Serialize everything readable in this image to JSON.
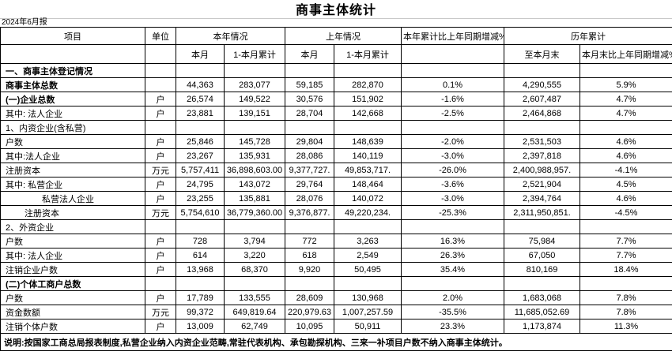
{
  "page": {
    "title": "商事主体统计",
    "report_period": "2024年6月报"
  },
  "table": {
    "header": {
      "item": "项目",
      "unit": "单位",
      "this_year": "本年情况",
      "last_year": "上年情况",
      "ytd_vs_last_year": "本年累计比上年同期增减%",
      "historical": "历年累计",
      "this_month": "本月",
      "month_cumulative": "1-本月累计",
      "to_month_end": "至本月末",
      "month_end_vs_last_year": "本月末比上年同期增减%"
    },
    "rows": [
      {
        "label": "一、商事主体登记情况",
        "unit": "",
        "bold": true,
        "indent": 0,
        "values": [
          "",
          "",
          "",
          "",
          "",
          "",
          ""
        ]
      },
      {
        "label": "商事主体总数",
        "unit": "",
        "bold": true,
        "indent": 0,
        "values": [
          "44,363",
          "283,077",
          "59,185",
          "282,870",
          "0.1%",
          "4,290,555",
          "5.9%"
        ]
      },
      {
        "label": "(一)企业总数",
        "unit": "户",
        "bold": true,
        "indent": 0,
        "values": [
          "26,574",
          "149,522",
          "30,576",
          "151,902",
          "-1.6%",
          "2,607,487",
          "4.7%"
        ]
      },
      {
        "label": "其中: 法人企业",
        "unit": "户",
        "bold": false,
        "indent": 0,
        "values": [
          "23,881",
          "139,151",
          "28,704",
          "142,668",
          "-2.5%",
          "2,464,868",
          "4.7%"
        ]
      },
      {
        "label": "1、内资企业(含私营)",
        "unit": "",
        "bold": false,
        "indent": 0,
        "values": [
          "",
          "",
          "",
          "",
          "",
          "",
          ""
        ]
      },
      {
        "label": "户数",
        "unit": "户",
        "bold": false,
        "indent": 0,
        "values": [
          "25,846",
          "145,728",
          "29,804",
          "148,639",
          "-2.0%",
          "2,531,503",
          "4.6%"
        ]
      },
      {
        "label": "其中:法人企业",
        "unit": "户",
        "bold": false,
        "indent": 0,
        "values": [
          "23,267",
          "135,931",
          "28,086",
          "140,119",
          "-3.0%",
          "2,397,818",
          "4.6%"
        ]
      },
      {
        "label": "注册资本",
        "unit": "万元",
        "bold": false,
        "indent": 0,
        "values": [
          "5,757,411",
          "36,898,603.00",
          "9,377,727.",
          "49,853,717.",
          "-26.0%",
          "2,400,988,957.",
          "-4.1%"
        ]
      },
      {
        "label": "其中: 私营企业",
        "unit": "户",
        "bold": false,
        "indent": 0,
        "values": [
          "24,795",
          "143,072",
          "29,764",
          "148,464",
          "-3.6%",
          "2,521,904",
          "4.5%"
        ]
      },
      {
        "label": "私营法人企业",
        "unit": "户",
        "bold": false,
        "indent": 2,
        "values": [
          "23,255",
          "135,881",
          "28,076",
          "140,072",
          "-3.0%",
          "2,394,764",
          "4.6%"
        ]
      },
      {
        "label": "注册资本",
        "unit": "万元",
        "bold": false,
        "indent": 1,
        "values": [
          "5,754,610",
          "36,779,360.00",
          "9,376,877.",
          "49,220,234.",
          "-25.3%",
          "2,311,950,851.",
          "-4.5%"
        ]
      },
      {
        "label": "2、外资企业",
        "unit": "",
        "bold": false,
        "indent": 0,
        "values": [
          "",
          "",
          "",
          "",
          "",
          "",
          ""
        ]
      },
      {
        "label": "户数",
        "unit": "户",
        "bold": false,
        "indent": 0,
        "values": [
          "728",
          "3,794",
          "772",
          "3,263",
          "16.3%",
          "75,984",
          "7.7%"
        ]
      },
      {
        "label": "其中: 法人企业",
        "unit": "户",
        "bold": false,
        "indent": 0,
        "values": [
          "614",
          "3,220",
          "618",
          "2,549",
          "26.3%",
          "67,050",
          "7.7%"
        ]
      },
      {
        "label": "注销企业户数",
        "unit": "户",
        "bold": false,
        "indent": 0,
        "values": [
          "13,968",
          "68,370",
          "9,920",
          "50,495",
          "35.4%",
          "810,169",
          "18.4%"
        ]
      },
      {
        "label": "(二)个体工商户总数",
        "unit": "",
        "bold": true,
        "indent": 0,
        "values": [
          "",
          "",
          "",
          "",
          "",
          "",
          ""
        ]
      },
      {
        "label": "户数",
        "unit": "户",
        "bold": false,
        "indent": 0,
        "values": [
          "17,789",
          "133,555",
          "28,609",
          "130,968",
          "2.0%",
          "1,683,068",
          "7.8%"
        ]
      },
      {
        "label": "资金数额",
        "unit": "万元",
        "bold": false,
        "indent": 0,
        "values": [
          "99,372",
          "649,819.64",
          "220,979.63",
          "1,007,257.59",
          "-35.5%",
          "11,685,052.69",
          "7.8%"
        ]
      },
      {
        "label": "注销个体户数",
        "unit": "户",
        "bold": false,
        "indent": 0,
        "values": [
          "13,009",
          "62,749",
          "10,095",
          "50,911",
          "23.3%",
          "1,173,874",
          "11.3%"
        ]
      }
    ],
    "footnote": "说明:按国家工商总局报表制度,私营企业纳入内资企业范畴,常驻代表机构、承包勘探机构、三来一补项目户数不纳入商事主体统计。"
  }
}
